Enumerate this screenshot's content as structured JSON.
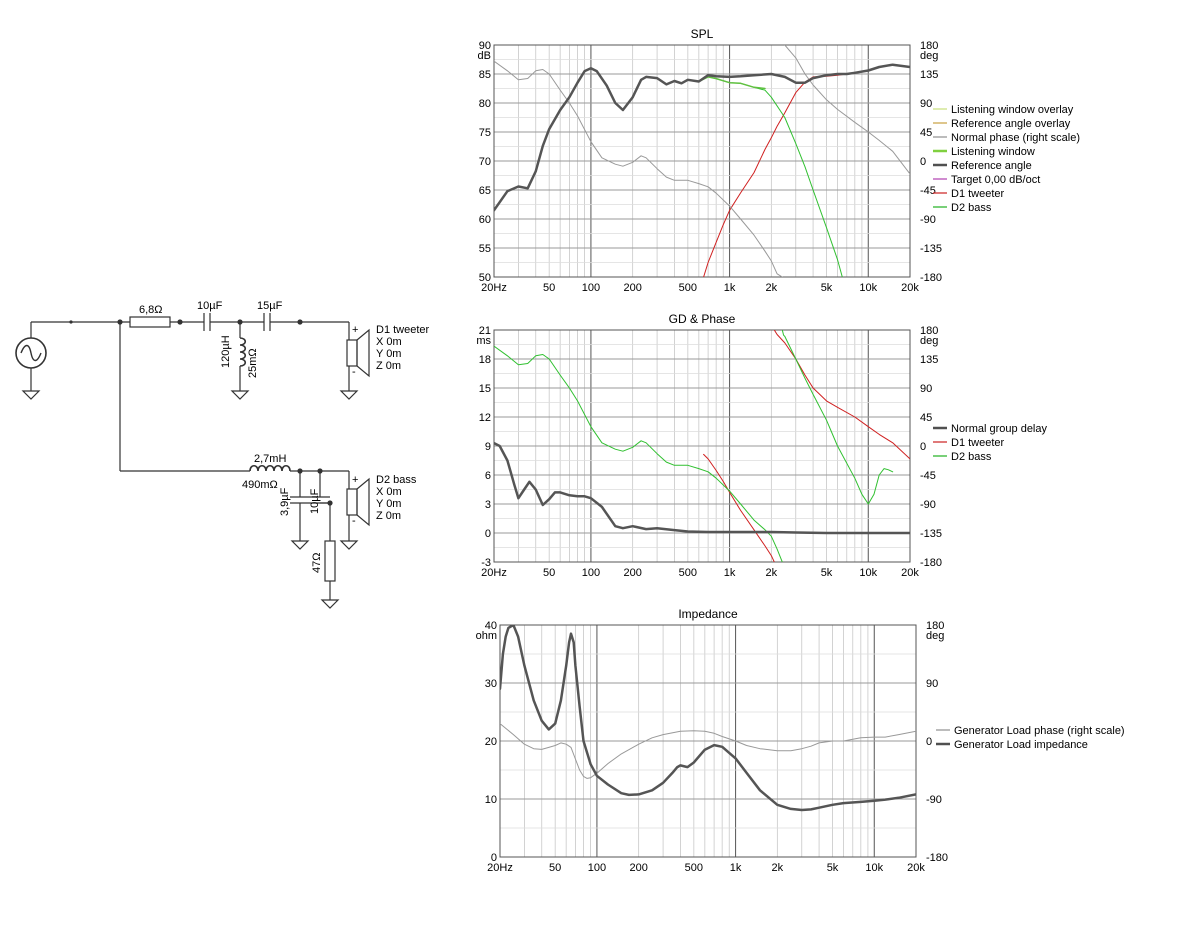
{
  "schematic": {
    "r1": "6,8Ω",
    "c1": "10µF",
    "c2": "15µF",
    "l1": "120µH",
    "l1r": "25mΩ",
    "d1": {
      "name": "D1 tweeter",
      "x": "X 0m",
      "y": "Y 0m",
      "z": "Z 0m"
    },
    "l2": "2,7mH",
    "l2r": "490mΩ",
    "c3": "3,9µF",
    "c4": "10µF",
    "r2": "47Ω",
    "d2": {
      "name": "D2 bass",
      "x": "X 0m",
      "y": "Y 0m",
      "z": "Z 0m"
    },
    "plus": "+",
    "minus": "-"
  },
  "chart_data": [
    {
      "type": "line",
      "title": "SPL",
      "ylabel": "dB",
      "ylabel_right": "deg",
      "xscale": "log",
      "xlim": [
        20,
        20000
      ],
      "ylim": [
        50,
        90
      ],
      "ylim_right": [
        -180,
        180
      ],
      "xticks": [
        "20Hz",
        "50",
        "100",
        "200",
        "500",
        "1k",
        "2k",
        "5k",
        "10k",
        "20k"
      ],
      "yticks": [
        "50",
        "55",
        "60",
        "65",
        "70",
        "75",
        "80",
        "85",
        "90"
      ],
      "yticks_right": [
        "-180",
        "-135",
        "-90",
        "-45",
        "0",
        "45",
        "90",
        "135",
        "180"
      ],
      "grid": true,
      "legend": "right",
      "legend_entries": [
        {
          "name": "Listening window overlay",
          "color": "#c7e07a"
        },
        {
          "name": "Reference angle overlay",
          "color": "#c8a040"
        },
        {
          "name": "Normal phase (right scale)",
          "color": "#909090"
        },
        {
          "name": "Listening window",
          "color": "#80d040"
        },
        {
          "name": "Reference angle",
          "color": "#505050"
        },
        {
          "name": "Target 0,00 dB/oct",
          "color": "#b040b0"
        },
        {
          "name": "D1 tweeter",
          "color": "#cc2020"
        },
        {
          "name": "D2 bass",
          "color": "#20b020"
        }
      ],
      "series": [
        {
          "name": "Reference angle",
          "axis": "left",
          "color": "#555555",
          "width": 2.5,
          "x": [
            20,
            25,
            30,
            35,
            40,
            45,
            50,
            60,
            70,
            80,
            90,
            100,
            110,
            130,
            150,
            170,
            200,
            230,
            250,
            300,
            350,
            400,
            450,
            500,
            600,
            700,
            800,
            1000,
            1200,
            1500,
            2000,
            2500,
            3000,
            3500,
            4000,
            5000,
            6000,
            7000,
            8000,
            10000,
            12000,
            15000,
            20000
          ],
          "y": [
            61.5,
            64.8,
            65.6,
            65.3,
            68.2,
            72.6,
            75.5,
            78.8,
            81,
            83.5,
            85.5,
            86,
            85.5,
            83,
            80,
            78.8,
            81,
            84,
            84.5,
            84.3,
            83.2,
            83.8,
            83.4,
            84,
            83.7,
            84.8,
            84.6,
            84.5,
            84.6,
            84.8,
            85,
            84.5,
            83.5,
            83.5,
            84.3,
            84.8,
            85,
            85,
            85.2,
            85.6,
            86.2,
            86.6,
            86.2
          ]
        },
        {
          "name": "Listening window",
          "axis": "left",
          "color": "#60c040",
          "width": 1.5,
          "x": [
            20,
            25,
            30,
            35,
            40,
            45,
            50,
            60,
            70,
            80,
            90,
            100,
            110,
            130,
            150,
            170,
            200,
            230,
            250,
            300,
            350,
            400,
            450,
            500,
            600,
            700,
            800,
            1000,
            1200,
            1500,
            1800
          ],
          "y": [
            61.5,
            64.8,
            65.6,
            65.3,
            68.2,
            72.6,
            75.5,
            78.8,
            81,
            83.5,
            85.5,
            86,
            85.5,
            83,
            80,
            78.8,
            81,
            84,
            84.5,
            84.3,
            83.2,
            83.8,
            83.4,
            84,
            83.7,
            84.5,
            84.2,
            83.5,
            83.4,
            82.7,
            82.5
          ]
        },
        {
          "name": "D1 tweeter",
          "axis": "left",
          "color": "#d02020",
          "width": 1,
          "x": [
            650,
            700,
            800,
            900,
            1000,
            1200,
            1500,
            1800,
            2000,
            2200,
            2500,
            3000,
            3500,
            4000,
            5000,
            6000,
            7000,
            8000,
            10000,
            12000,
            15000,
            20000
          ],
          "y": [
            50,
            52.5,
            56,
            59,
            61.5,
            64.5,
            68,
            72,
            74,
            76,
            78.3,
            81.8,
            83.6,
            84.5,
            84.6,
            84.8,
            85,
            85.2,
            85.6,
            86.2,
            86.6,
            86.2
          ]
        },
        {
          "name": "D2 bass",
          "axis": "left",
          "color": "#30c030",
          "width": 1,
          "x": [
            800,
            1000,
            1200,
            1500,
            1800,
            2000,
            2500,
            3000,
            3500,
            4000,
            5000,
            6000,
            6500
          ],
          "y": [
            84.2,
            83.5,
            83.4,
            82.7,
            82.2,
            81,
            77.5,
            73,
            69,
            65,
            58.5,
            53,
            50
          ]
        },
        {
          "name": "Normal phase (right scale)",
          "axis": "right",
          "color": "#999999",
          "width": 1,
          "x": [
            20,
            25,
            30,
            35,
            40,
            45,
            50,
            60,
            70,
            80,
            100,
            120,
            150,
            170,
            200,
            230,
            250,
            300,
            350,
            400,
            500,
            600,
            700,
            800,
            1000,
            1200,
            1500,
            1800,
            2000,
            2200,
            2400,
            2500,
            3000,
            3500,
            4000,
            5000,
            6000,
            8000,
            10000,
            12000,
            15000,
            20000
          ],
          "y": [
            155,
            140,
            126,
            128,
            140,
            142,
            135,
            110,
            90,
            70,
            30,
            5,
            -5,
            -8,
            -2,
            8,
            5,
            -12,
            -25,
            -30,
            -30,
            -35,
            -40,
            -50,
            -70,
            -90,
            -115,
            -140,
            -155,
            -175,
            -180,
            180,
            160,
            135,
            118,
            95,
            80,
            60,
            45,
            32,
            15,
            -20
          ]
        }
      ]
    },
    {
      "type": "line",
      "title": "GD & Phase",
      "ylabel": "ms",
      "ylabel_right": "deg",
      "xscale": "log",
      "xlim": [
        20,
        20000
      ],
      "ylim": [
        -3,
        21
      ],
      "ylim_right": [
        -180,
        180
      ],
      "xticks": [
        "20Hz",
        "50",
        "100",
        "200",
        "500",
        "1k",
        "2k",
        "5k",
        "10k",
        "20k"
      ],
      "yticks": [
        "-3",
        "0",
        "3",
        "6",
        "9",
        "12",
        "15",
        "18",
        "21"
      ],
      "yticks_right": [
        "-180",
        "-135",
        "-90",
        "-45",
        "0",
        "45",
        "90",
        "135",
        "180"
      ],
      "grid": true,
      "legend": "right",
      "legend_entries": [
        {
          "name": "Normal group delay",
          "color": "#505050"
        },
        {
          "name": "D1 tweeter",
          "color": "#cc2020"
        },
        {
          "name": "D2 bass",
          "color": "#20b020"
        }
      ],
      "series": [
        {
          "name": "Normal group delay",
          "axis": "left",
          "color": "#555555",
          "width": 2.5,
          "x": [
            20,
            22,
            25,
            28,
            30,
            33,
            36,
            40,
            45,
            50,
            55,
            60,
            70,
            80,
            90,
            100,
            120,
            150,
            170,
            200,
            250,
            300,
            400,
            500,
            700,
            1000,
            2000,
            3000,
            5000,
            10000,
            20000
          ],
          "y": [
            9.3,
            9.0,
            7.5,
            5,
            3.6,
            4.5,
            5.3,
            4.5,
            2.9,
            3.5,
            4.2,
            4.2,
            3.9,
            3.8,
            3.8,
            3.6,
            2.7,
            0.7,
            0.5,
            0.7,
            0.4,
            0.5,
            0.3,
            0.15,
            0.1,
            0.1,
            0.1,
            0.05,
            0,
            0,
            0
          ]
        },
        {
          "name": "D1 tweeter",
          "axis": "right",
          "color": "#d02020",
          "width": 1,
          "x": [
            650,
            700,
            800,
            900,
            1000,
            1200,
            1500,
            1800,
            2000,
            2100,
            2100,
            2200,
            2500,
            3000,
            3500,
            4000,
            5000,
            6000,
            8000,
            10000,
            12000,
            15000,
            20000
          ],
          "y": [
            -13,
            -20,
            -38,
            -55,
            -72,
            -100,
            -130,
            -155,
            -170,
            -180,
            180,
            173,
            160,
            135,
            110,
            90,
            70,
            60,
            45,
            30,
            18,
            5,
            -20
          ]
        },
        {
          "name": "D2 bass",
          "axis": "right",
          "color": "#30c030",
          "width": 1,
          "x": [
            20,
            25,
            30,
            35,
            40,
            45,
            50,
            60,
            70,
            80,
            100,
            120,
            150,
            170,
            200,
            230,
            250,
            300,
            350,
            400,
            500,
            600,
            700,
            800,
            1000,
            1200,
            1500,
            1800,
            2000,
            2200,
            2350,
            2400,
            2400,
            2450,
            2500,
            3000,
            3500,
            4000,
            5000,
            6000,
            8000,
            9000,
            10000,
            11000,
            12000,
            13000,
            14000,
            15000
          ],
          "y": [
            155,
            140,
            126,
            128,
            140,
            142,
            135,
            110,
            90,
            70,
            30,
            5,
            -5,
            -8,
            -2,
            8,
            5,
            -12,
            -25,
            -30,
            -30,
            -35,
            -40,
            -50,
            -70,
            -90,
            -115,
            -130,
            -140,
            -160,
            -175,
            -180,
            180,
            172,
            170,
            135,
            105,
            80,
            40,
            0,
            -50,
            -75,
            -90,
            -75,
            -45,
            -35,
            -37,
            -40
          ]
        }
      ]
    },
    {
      "type": "line",
      "title": "Impedance",
      "ylabel": "ohm",
      "ylabel_right": "deg",
      "xscale": "log",
      "xlim": [
        20,
        20000
      ],
      "ylim": [
        0,
        40
      ],
      "ylim_right": [
        -180,
        180
      ],
      "xticks": [
        "20Hz",
        "50",
        "100",
        "200",
        "500",
        "1k",
        "2k",
        "5k",
        "10k",
        "20k"
      ],
      "yticks": [
        "0",
        "10",
        "20",
        "30",
        "40"
      ],
      "yticks_right": [
        "-180",
        "-90",
        "0",
        "90",
        "180"
      ],
      "grid": true,
      "legend": "right",
      "legend_entries": [
        {
          "name": "Generator Load phase (right scale)",
          "color": "#909090"
        },
        {
          "name": "Generator Load impedance",
          "color": "#505050"
        }
      ],
      "series": [
        {
          "name": "Generator Load impedance",
          "axis": "left",
          "color": "#555555",
          "width": 2.5,
          "x": [
            20,
            21,
            22,
            23,
            25,
            27,
            30,
            35,
            40,
            45,
            50,
            55,
            60,
            63,
            65,
            68,
            70,
            75,
            80,
            90,
            100,
            120,
            150,
            170,
            200,
            250,
            300,
            350,
            380,
            400,
            450,
            500,
            600,
            700,
            800,
            1000,
            1200,
            1500,
            2000,
            2500,
            3000,
            3500,
            4000,
            5000,
            6000,
            8000,
            10000,
            12000,
            15000,
            20000
          ],
          "y": [
            29,
            35,
            38,
            39.5,
            40,
            38,
            33,
            27,
            23.5,
            22,
            23,
            27,
            33,
            37,
            38.5,
            37,
            33,
            26,
            20,
            16,
            14,
            12.5,
            11,
            10.7,
            10.8,
            11.5,
            12.8,
            14.5,
            15.5,
            15.8,
            15.5,
            16.3,
            18.5,
            19.3,
            19,
            17,
            14.5,
            11.5,
            9,
            8.3,
            8.1,
            8.2,
            8.5,
            9,
            9.3,
            9.5,
            9.7,
            9.9,
            10.2,
            10.8
          ]
        },
        {
          "name": "Generator Load phase (right scale)",
          "axis": "right",
          "color": "#999999",
          "width": 1,
          "x": [
            20,
            25,
            30,
            35,
            40,
            45,
            50,
            55,
            60,
            65,
            70,
            75,
            80,
            85,
            90,
            100,
            120,
            150,
            200,
            250,
            300,
            400,
            500,
            600,
            700,
            800,
            1000,
            1200,
            1500,
            2000,
            2500,
            3000,
            3500,
            4000,
            5000,
            6000,
            8000,
            10000,
            12000,
            15000,
            20000
          ],
          "y": [
            27,
            10,
            -5,
            -12,
            -13,
            -10,
            -7,
            -3,
            -5,
            -10,
            -28,
            -45,
            -55,
            -58,
            -57,
            -50,
            -35,
            -20,
            -5,
            5,
            10,
            15,
            16,
            15,
            12,
            7,
            0,
            -7,
            -12,
            -15,
            -15,
            -12,
            -8,
            -3,
            0,
            0,
            5,
            6,
            6,
            10,
            15
          ]
        }
      ]
    }
  ]
}
